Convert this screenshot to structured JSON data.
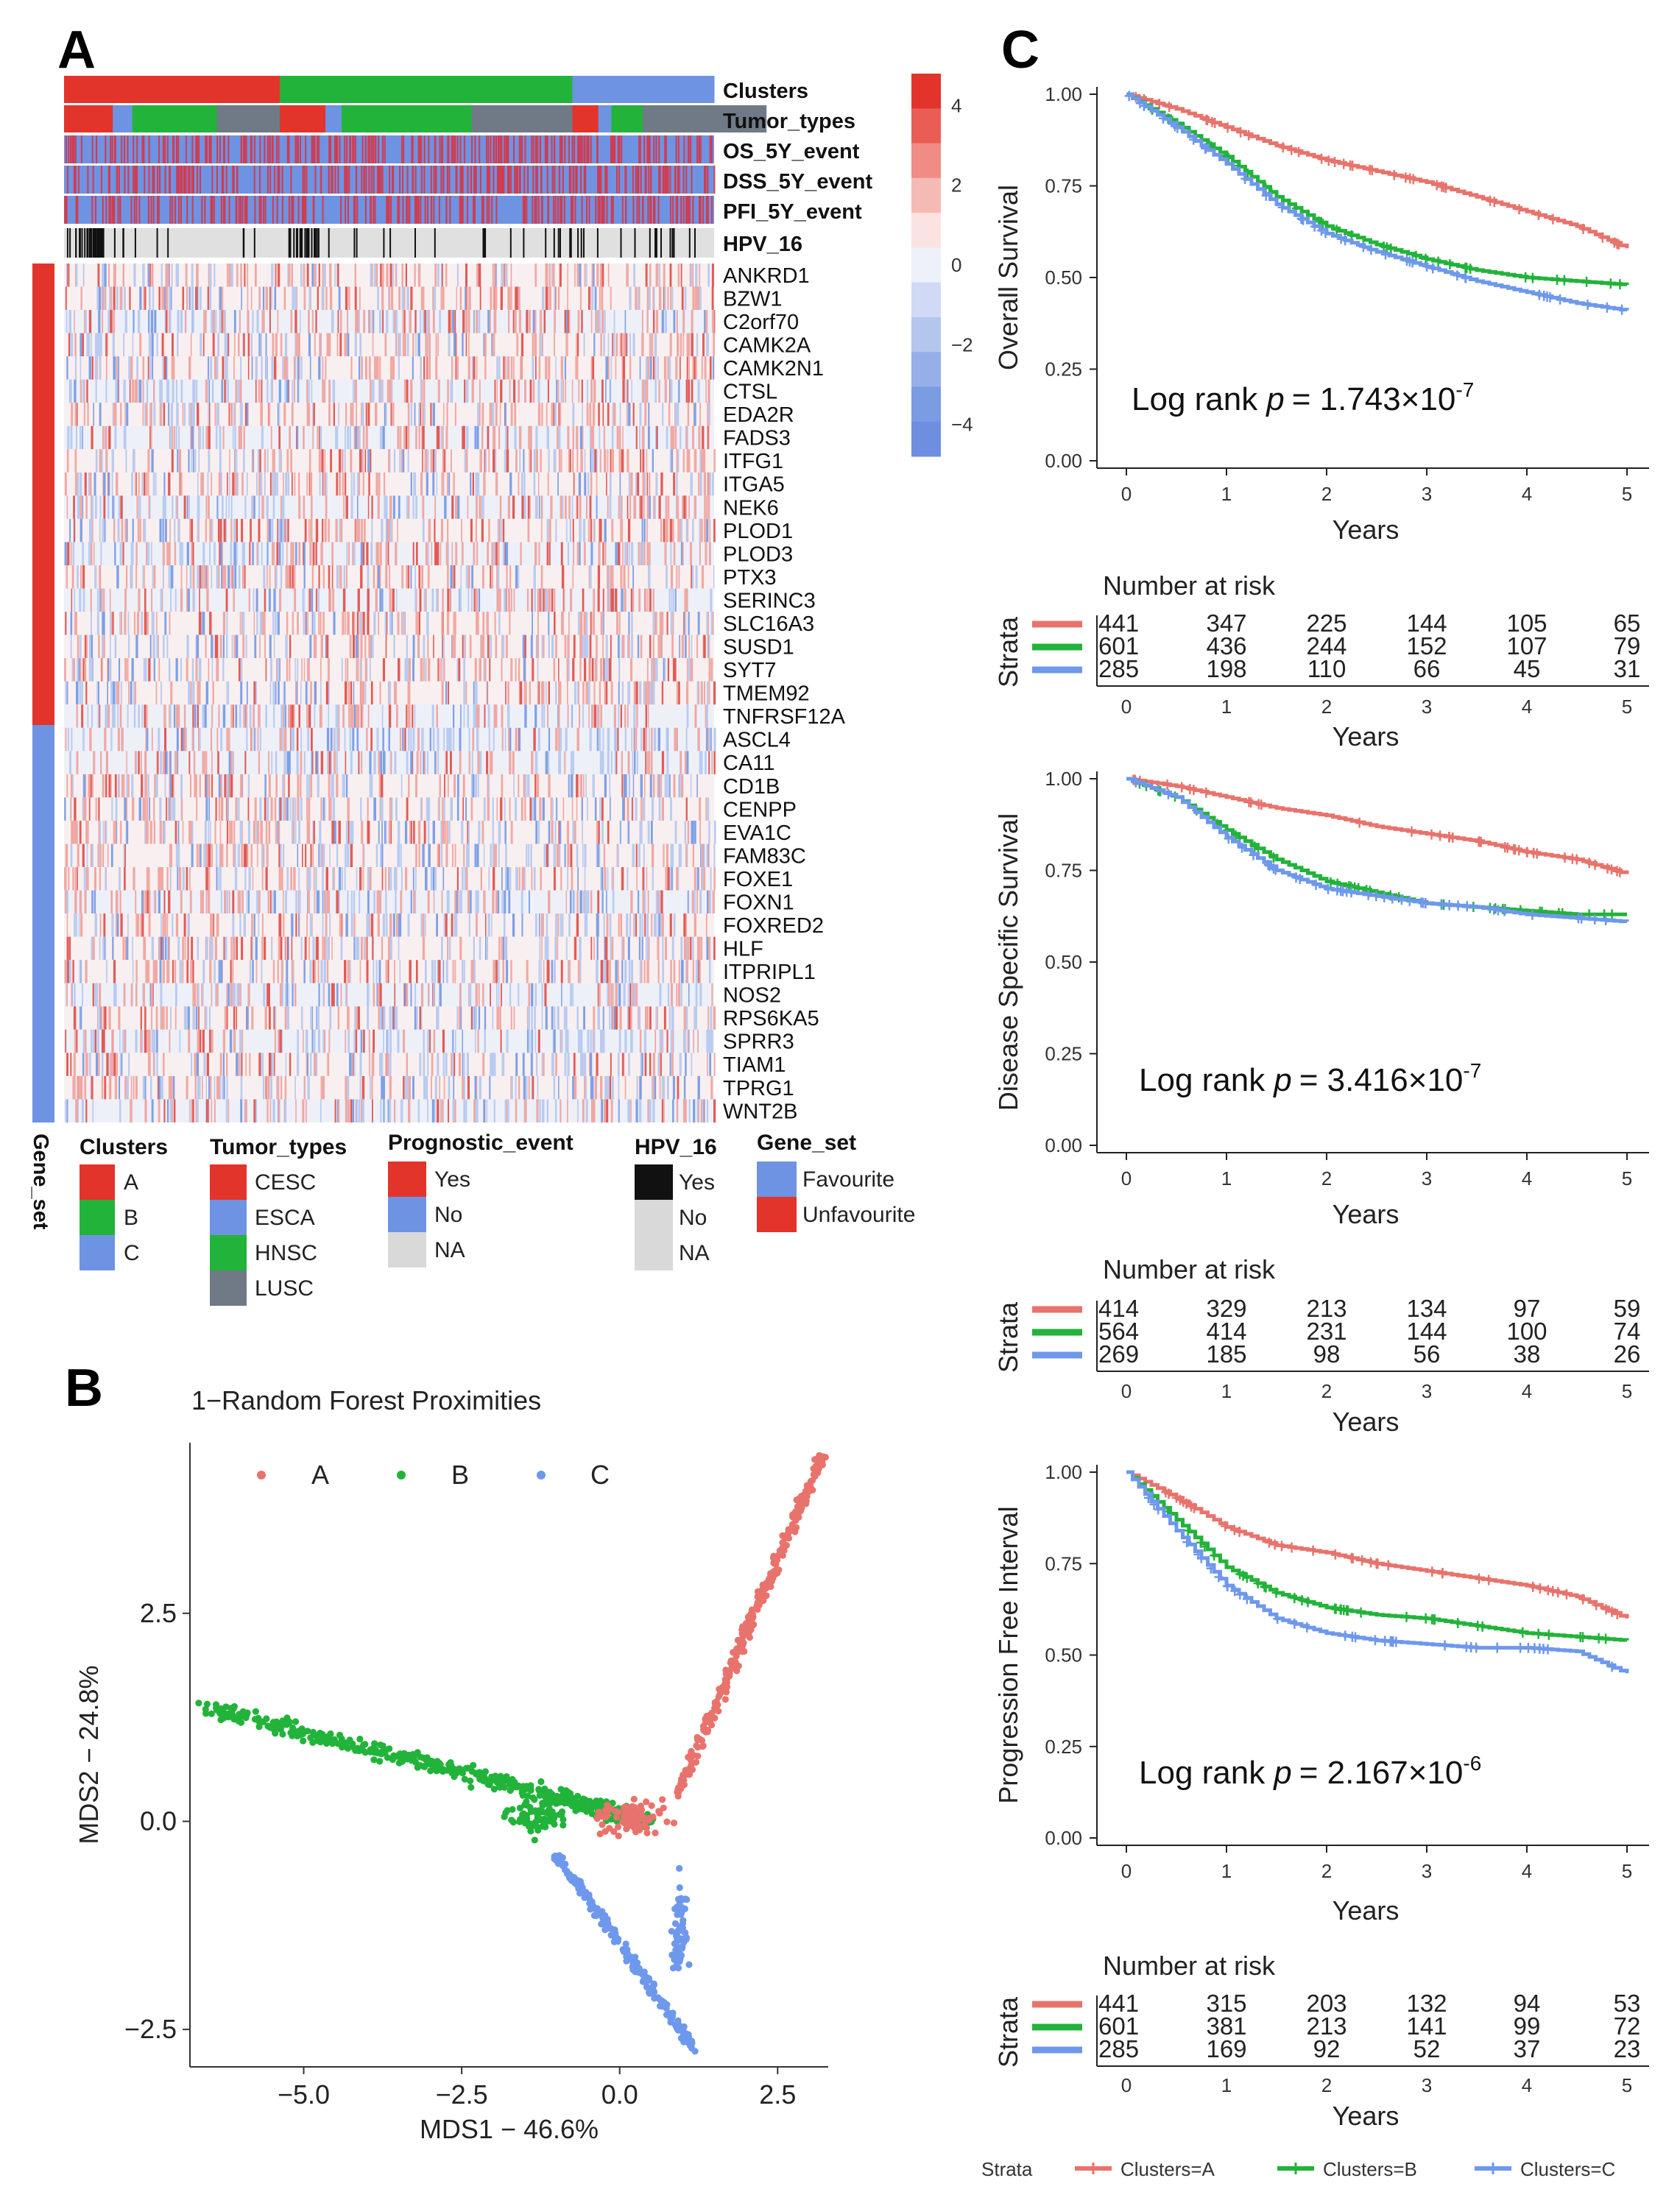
{
  "panel_labels": {
    "a": "A",
    "b": "B",
    "c": "C"
  },
  "colors": {
    "A": "#E8736C",
    "B": "#22B33A",
    "C": "#6E98EC",
    "red": "#E2342B",
    "blue": "#6E93E2",
    "grey": "#6F7A86",
    "black": "#111111",
    "na": "#D9D9D9"
  },
  "heatmap": {
    "annotation_rows": [
      "Clusters",
      "Tumor_types",
      "OS_5Y_event",
      "DSS_5Y_event",
      "PFI_5Y_event",
      "HPV_16"
    ],
    "genes": [
      "ANKRD1",
      "BZW1",
      "C2orf70",
      "CAMK2A",
      "CAMK2N1",
      "CTSL",
      "EDA2R",
      "FADS3",
      "ITFG1",
      "ITGA5",
      "NEK6",
      "PLOD1",
      "PLOD3",
      "PTX3",
      "SERINC3",
      "SLC16A3",
      "SUSD1",
      "SYT7",
      "TMEM92",
      "TNFRSF12A",
      "ASCL4",
      "CA11",
      "CD1B",
      "CENPP",
      "EVA1C",
      "FAM83C",
      "FOXE1",
      "FOXN1",
      "FOXRED2",
      "HLF",
      "ITPRIPL1",
      "NOS2",
      "RPS6KA5",
      "SPRR3",
      "TIAM1",
      "TPRG1",
      "WNT2B"
    ],
    "colorbar_ticks": [
      "4",
      "2",
      "0",
      "−2",
      "−4"
    ],
    "gene_set_side_label": "Gene_set",
    "legend": {
      "clusters": {
        "title": "Clusters",
        "items": [
          "A",
          "B",
          "C"
        ]
      },
      "tumor_types": {
        "title": "Tumor_types",
        "items": [
          "CESC",
          "ESCA",
          "HNSC",
          "LUSC"
        ]
      },
      "prognostic": {
        "title": "Prognostic_event",
        "items": [
          "Yes",
          "No",
          "NA"
        ]
      },
      "hpv": {
        "title": "HPV_16",
        "items": [
          "Yes",
          "No",
          "NA"
        ]
      },
      "gene_set": {
        "title": "Gene_set",
        "items": [
          "Favourite",
          "Unfavourite"
        ]
      }
    }
  },
  "chart_data": [
    {
      "type": "scatter",
      "title": "1−Random Forest Proximities",
      "xlabel": "MDS1 − 46.6%",
      "ylabel": "MDS2 − 24.8%",
      "xlim": [
        -6.8,
        3.3
      ],
      "ylim": [
        -2.95,
        4.55
      ],
      "xticks": [
        -5.0,
        -2.5,
        0.0,
        2.5
      ],
      "xtick_labels": [
        "−5.0",
        "−2.5",
        "0.0",
        "2.5"
      ],
      "yticks": [
        -2.5,
        0.0,
        2.5
      ],
      "ytick_labels": [
        "−2.5",
        "0.0",
        "2.5"
      ],
      "legend": [
        "A",
        "B",
        "C"
      ],
      "legend_position": "top-left",
      "series": [
        {
          "name": "A",
          "shape": "arm from (0.9,0.3) to (3.2,4.4) plus scatter near (0,0)",
          "anchors": [
            [
              0.9,
              0.3
            ],
            [
              3.2,
              4.4
            ]
          ],
          "n": 441
        },
        {
          "name": "B",
          "shape": "arm from (-6.6,1.4) to (0.5,0.0)",
          "anchors": [
            [
              -6.6,
              1.4
            ],
            [
              0.5,
              0.0
            ]
          ],
          "n": 601
        },
        {
          "name": "C",
          "shape": "arm from (-1.0,-0.4) to (1.2,-2.75)",
          "anchors": [
            [
              -1.0,
              -0.4
            ],
            [
              1.2,
              -2.75
            ]
          ],
          "n": 285
        }
      ]
    },
    {
      "type": "line",
      "ylabel": "Overall Survival",
      "xlabel": "Years",
      "xlim": [
        0,
        5
      ],
      "ylim": [
        0,
        1
      ],
      "yticks": [
        "0.00",
        "0.25",
        "0.50",
        "0.75",
        "1.00"
      ],
      "xticks": [
        "0",
        "1",
        "2",
        "3",
        "4",
        "5"
      ],
      "annotation": {
        "prefix": "Log rank",
        "p": "p",
        "value": "= 1.743×10",
        "exp": "-7"
      },
      "series": [
        {
          "name": "Clusters=A",
          "x": [
            0,
            0.5,
            1,
            1.5,
            2,
            2.5,
            3,
            3.5,
            4,
            4.5,
            5
          ],
          "y": [
            1.0,
            0.96,
            0.91,
            0.86,
            0.82,
            0.79,
            0.76,
            0.72,
            0.68,
            0.64,
            0.58
          ]
        },
        {
          "name": "Clusters=B",
          "x": [
            0,
            0.5,
            1,
            1.5,
            2,
            2.5,
            3,
            3.5,
            4,
            4.5,
            5
          ],
          "y": [
            1.0,
            0.92,
            0.83,
            0.72,
            0.64,
            0.59,
            0.55,
            0.52,
            0.5,
            0.49,
            0.48
          ]
        },
        {
          "name": "Clusters=C",
          "x": [
            0,
            0.5,
            1,
            1.5,
            2,
            2.5,
            3,
            3.5,
            4,
            4.5,
            5
          ],
          "y": [
            1.0,
            0.91,
            0.81,
            0.7,
            0.62,
            0.57,
            0.53,
            0.49,
            0.46,
            0.43,
            0.41
          ]
        }
      ],
      "risk_title": "Number at risk",
      "risk_axis_label": "Strata",
      "risk_xlabel": "Years",
      "risk_table": [
        [
          "441",
          "347",
          "225",
          "144",
          "105",
          "65"
        ],
        [
          "601",
          "436",
          "244",
          "152",
          "107",
          "79"
        ],
        [
          "285",
          "198",
          "110",
          "66",
          "45",
          "31"
        ]
      ]
    },
    {
      "type": "line",
      "ylabel": "Disease Specific Survival",
      "xlabel": "Years",
      "xlim": [
        0,
        5
      ],
      "ylim": [
        0,
        1
      ],
      "yticks": [
        "0.00",
        "0.25",
        "0.50",
        "0.75",
        "1.00"
      ],
      "xticks": [
        "0",
        "1",
        "2",
        "3",
        "4",
        "5"
      ],
      "annotation": {
        "prefix": "Log rank",
        "p": "p",
        "value": "= 3.416×10",
        "exp": "-7"
      },
      "series": [
        {
          "name": "Clusters=A",
          "x": [
            0,
            0.5,
            1,
            1.5,
            2,
            2.5,
            3,
            3.5,
            4,
            4.5,
            5
          ],
          "y": [
            1.0,
            0.98,
            0.95,
            0.92,
            0.9,
            0.87,
            0.85,
            0.83,
            0.8,
            0.78,
            0.74
          ]
        },
        {
          "name": "Clusters=B",
          "x": [
            0,
            0.5,
            1,
            1.5,
            2,
            2.5,
            3,
            3.5,
            4,
            4.5,
            5
          ],
          "y": [
            1.0,
            0.95,
            0.86,
            0.78,
            0.72,
            0.69,
            0.66,
            0.65,
            0.64,
            0.63,
            0.63
          ]
        },
        {
          "name": "Clusters=C",
          "x": [
            0,
            0.5,
            1,
            1.5,
            2,
            2.5,
            3,
            3.5,
            4,
            4.5,
            5
          ],
          "y": [
            1.0,
            0.95,
            0.84,
            0.75,
            0.7,
            0.68,
            0.66,
            0.65,
            0.63,
            0.62,
            0.61
          ]
        }
      ],
      "risk_title": "Number at risk",
      "risk_axis_label": "Strata",
      "risk_xlabel": "Years",
      "risk_table": [
        [
          "414",
          "329",
          "213",
          "134",
          "97",
          "59"
        ],
        [
          "564",
          "414",
          "231",
          "144",
          "100",
          "74"
        ],
        [
          "269",
          "185",
          "98",
          "56",
          "38",
          "26"
        ]
      ]
    },
    {
      "type": "line",
      "ylabel": "Progression Free Interval",
      "xlabel": "Years",
      "xlim": [
        0,
        5
      ],
      "ylim": [
        0,
        1
      ],
      "yticks": [
        "0.00",
        "0.25",
        "0.50",
        "0.75",
        "1.00"
      ],
      "xticks": [
        "0",
        "1",
        "2",
        "3",
        "4",
        "5"
      ],
      "annotation": {
        "prefix": "Log rank",
        "p": "p",
        "value": "= 2.167×10",
        "exp": "-6"
      },
      "series": [
        {
          "name": "Clusters=A",
          "x": [
            0,
            0.5,
            1,
            1.5,
            2,
            2.5,
            3,
            3.5,
            4,
            4.5,
            5
          ],
          "y": [
            1.0,
            0.93,
            0.85,
            0.8,
            0.78,
            0.75,
            0.73,
            0.71,
            0.69,
            0.66,
            0.6
          ]
        },
        {
          "name": "Clusters=B",
          "x": [
            0,
            0.5,
            1,
            1.5,
            2,
            2.5,
            3,
            3.5,
            4,
            4.5,
            5
          ],
          "y": [
            1.0,
            0.87,
            0.74,
            0.67,
            0.63,
            0.61,
            0.6,
            0.58,
            0.56,
            0.55,
            0.54
          ]
        },
        {
          "name": "Clusters=C",
          "x": [
            0,
            0.5,
            1,
            1.5,
            2,
            2.5,
            3,
            3.5,
            4,
            4.5,
            5
          ],
          "y": [
            1.0,
            0.84,
            0.69,
            0.6,
            0.56,
            0.54,
            0.53,
            0.52,
            0.52,
            0.51,
            0.45
          ]
        }
      ],
      "risk_title": "Number at risk",
      "risk_axis_label": "Strata",
      "risk_xlabel": "Years",
      "risk_table": [
        [
          "441",
          "315",
          "203",
          "132",
          "94",
          "53"
        ],
        [
          "601",
          "381",
          "213",
          "141",
          "99",
          "72"
        ],
        [
          "285",
          "169",
          "92",
          "52",
          "37",
          "23"
        ]
      ]
    }
  ],
  "km_legend": {
    "title": "Strata",
    "items": [
      "Clusters=A",
      "Clusters=B",
      "Clusters=C"
    ]
  }
}
